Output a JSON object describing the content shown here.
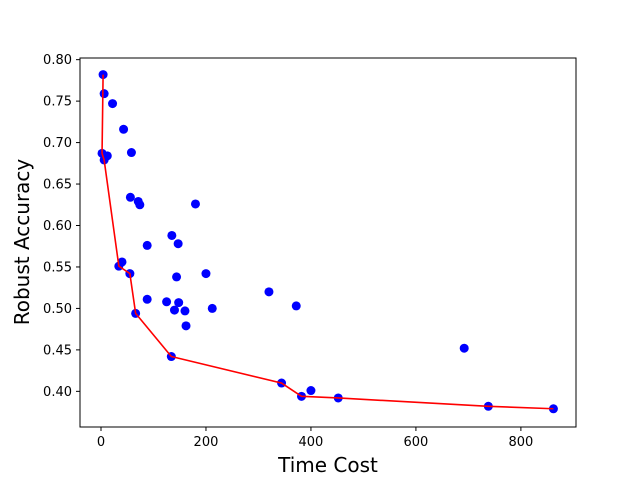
{
  "chart_data": {
    "type": "scatter",
    "title": "",
    "xlabel": "Time Cost",
    "ylabel": "Robust Accuracy",
    "xlim": [
      -40,
      905
    ],
    "ylim": [
      0.357,
      0.802
    ],
    "xticks": [
      0,
      200,
      400,
      600,
      800
    ],
    "yticks": [
      0.4,
      0.45,
      0.5,
      0.55,
      0.6,
      0.65,
      0.7,
      0.75,
      0.8
    ],
    "grid": false,
    "legend": "none",
    "series": [
      {
        "type": "scatter",
        "color": "#0000ff",
        "points": [
          [
            4,
            0.782
          ],
          [
            6,
            0.759
          ],
          [
            22,
            0.747
          ],
          [
            43,
            0.716
          ],
          [
            58,
            0.688
          ],
          [
            2,
            0.687
          ],
          [
            12,
            0.684
          ],
          [
            6,
            0.679
          ],
          [
            56,
            0.634
          ],
          [
            71,
            0.629
          ],
          [
            74,
            0.625
          ],
          [
            180,
            0.626
          ],
          [
            135,
            0.588
          ],
          [
            147,
            0.578
          ],
          [
            88,
            0.576
          ],
          [
            40,
            0.556
          ],
          [
            34,
            0.551
          ],
          [
            55,
            0.542
          ],
          [
            200,
            0.542
          ],
          [
            144,
            0.538
          ],
          [
            320,
            0.52
          ],
          [
            88,
            0.511
          ],
          [
            125,
            0.508
          ],
          [
            148,
            0.507
          ],
          [
            372,
            0.503
          ],
          [
            140,
            0.498
          ],
          [
            160,
            0.497
          ],
          [
            212,
            0.5
          ],
          [
            66,
            0.494
          ],
          [
            162,
            0.479
          ],
          [
            692,
            0.452
          ],
          [
            134,
            0.442
          ],
          [
            344,
            0.41
          ],
          [
            400,
            0.401
          ],
          [
            382,
            0.394
          ],
          [
            452,
            0.392
          ],
          [
            738,
            0.382
          ],
          [
            862,
            0.379
          ]
        ]
      },
      {
        "type": "line",
        "color": "#ff0000",
        "points": [
          [
            4,
            0.782
          ],
          [
            2,
            0.687
          ],
          [
            6,
            0.679
          ],
          [
            34,
            0.551
          ],
          [
            55,
            0.542
          ],
          [
            66,
            0.494
          ],
          [
            134,
            0.442
          ],
          [
            344,
            0.41
          ],
          [
            382,
            0.394
          ],
          [
            452,
            0.392
          ],
          [
            738,
            0.382
          ],
          [
            862,
            0.379
          ]
        ]
      }
    ]
  }
}
